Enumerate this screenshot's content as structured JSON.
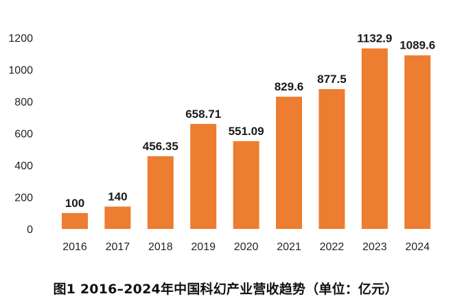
{
  "chart_data": {
    "type": "bar",
    "title": "",
    "caption": "图1  2016–2024年中国科幻产业营收趋势（单位：亿元）",
    "xlabel": "",
    "ylabel": "",
    "categories": [
      "2016",
      "2017",
      "2018",
      "2019",
      "2020",
      "2021",
      "2022",
      "2023",
      "2024"
    ],
    "values": [
      100,
      140,
      456.35,
      658.71,
      551.09,
      829.6,
      877.5,
      1132.9,
      1089.6
    ],
    "value_labels": [
      "100",
      "140",
      "456.35",
      "658.71",
      "551.09",
      "829.6",
      "877.5",
      "1132.9",
      "1089.6"
    ],
    "ylim": [
      0,
      1200
    ],
    "yticks": [
      0,
      200,
      400,
      600,
      800,
      1000,
      1200
    ],
    "grid": false,
    "legend": "none",
    "bar_color": "#ED7D31"
  }
}
